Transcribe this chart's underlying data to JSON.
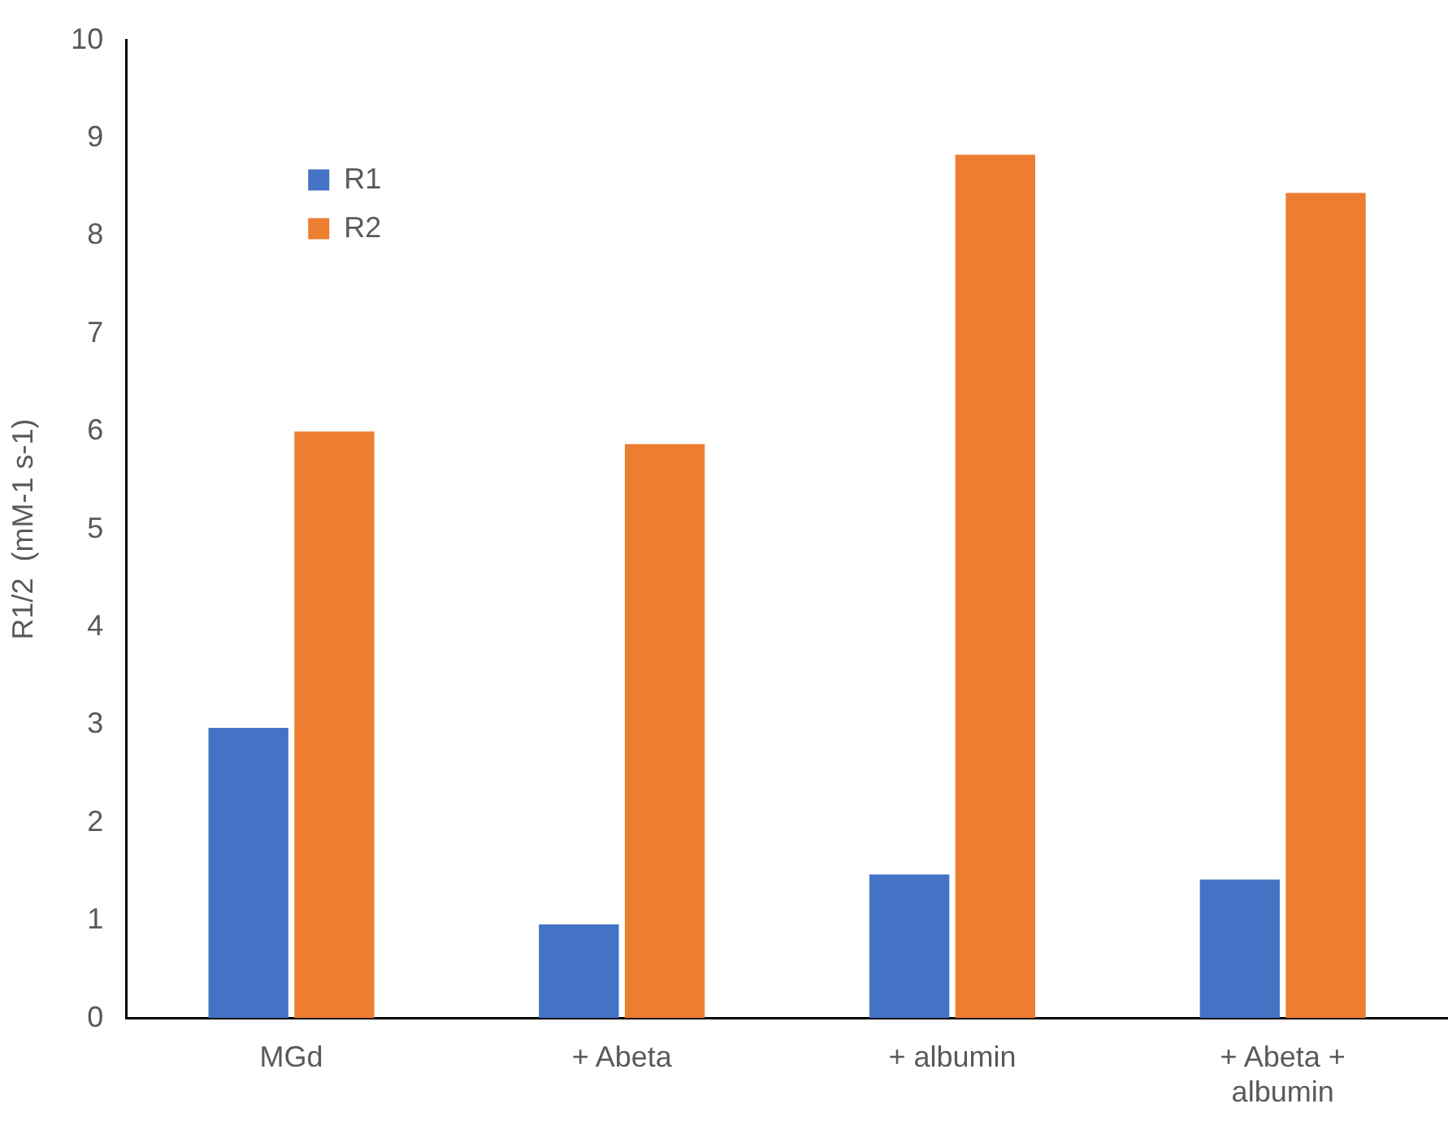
{
  "chart_data": {
    "type": "bar",
    "ylabel": "R1/2  (mM-1 s-1)",
    "categories": [
      "MGd",
      "+ Abeta",
      "+ albumin",
      "+ Abeta + albumin"
    ],
    "series": [
      {
        "name": "R1",
        "color": "#4472c4",
        "values": [
          2.97,
          0.96,
          1.47,
          1.42
        ]
      },
      {
        "name": "R2",
        "color": "#ed7d31",
        "values": [
          6.0,
          5.87,
          8.83,
          8.44
        ]
      }
    ],
    "ylim": [
      0,
      10
    ],
    "yticks": [
      0,
      1,
      2,
      3,
      4,
      5,
      6,
      7,
      8,
      9,
      10
    ],
    "grid": false,
    "legend": "top left"
  }
}
